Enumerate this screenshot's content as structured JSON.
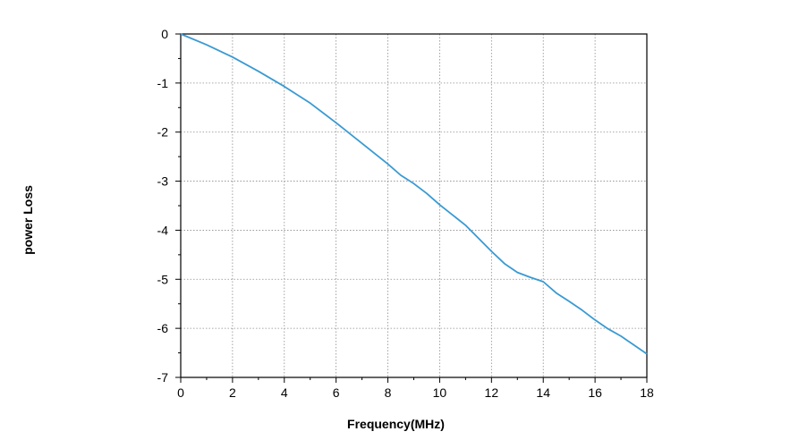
{
  "chart_data": {
    "type": "line",
    "title": "",
    "xlabel": "Frequency(MHz)",
    "ylabel": "power Loss",
    "xlim": [
      0,
      18
    ],
    "ylim": [
      -7,
      0
    ],
    "xticks": [
      0,
      2,
      4,
      6,
      8,
      10,
      12,
      14,
      16,
      18
    ],
    "yticks": [
      0,
      -1,
      -2,
      -3,
      -4,
      -5,
      -6,
      -7
    ],
    "grid": true,
    "line_color": "#3a9ad2",
    "series": [
      {
        "x": [
          0,
          1,
          2,
          3,
          4,
          5,
          6,
          7,
          8,
          8.5,
          9,
          9.5,
          10,
          11,
          12,
          12.5,
          13,
          13.5,
          14,
          14.5,
          15,
          15.5,
          16,
          16.5,
          17,
          17.5,
          18
        ],
        "y": [
          0,
          -0.22,
          -0.47,
          -0.76,
          -1.07,
          -1.41,
          -1.81,
          -2.23,
          -2.65,
          -2.88,
          -3.05,
          -3.25,
          -3.48,
          -3.9,
          -4.43,
          -4.68,
          -4.86,
          -4.96,
          -5.05,
          -5.28,
          -5.45,
          -5.63,
          -5.83,
          -6.01,
          -6.16,
          -6.34,
          -6.52
        ]
      }
    ]
  }
}
